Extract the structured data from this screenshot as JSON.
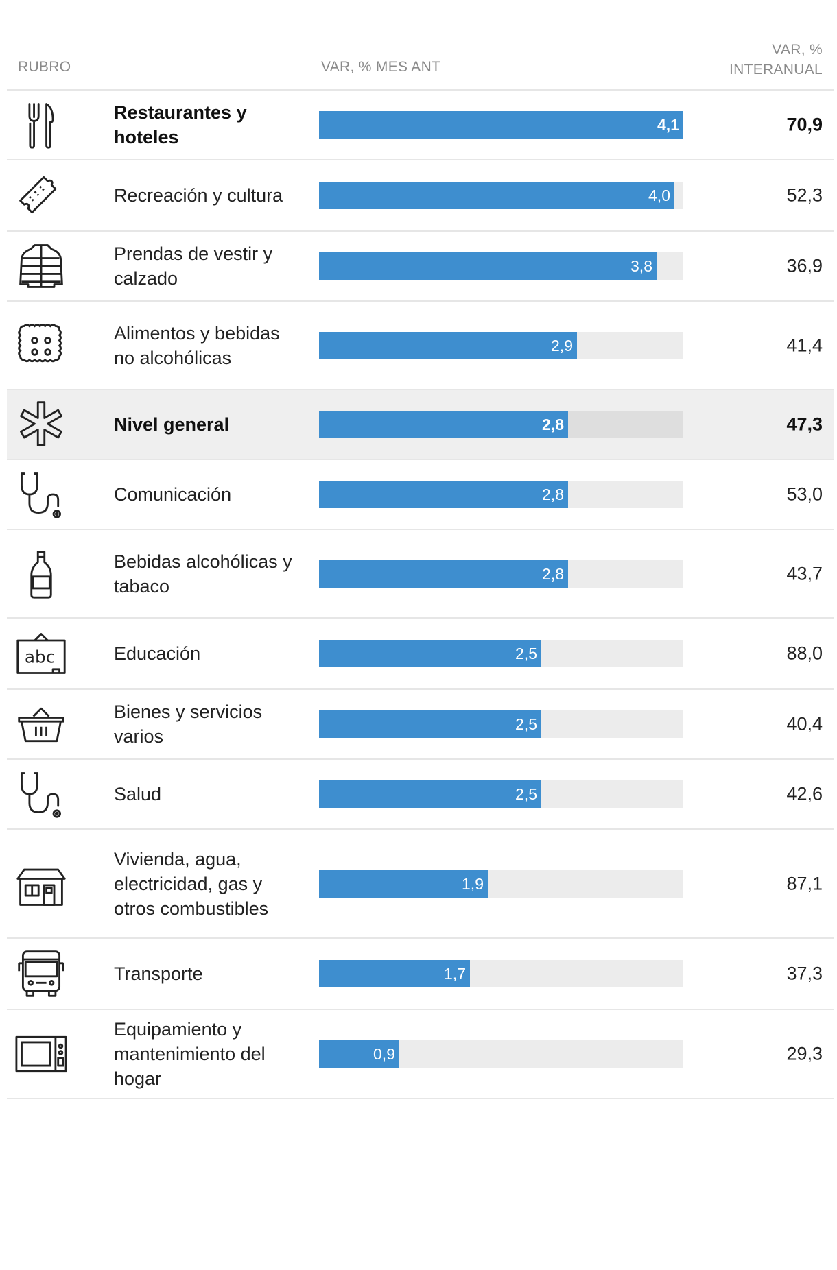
{
  "header": {
    "col_rubro": "RUBRO",
    "col_mes": "VAR, % MES ANT",
    "col_interanual": "VAR, %\nINTERANUAL"
  },
  "colors": {
    "bar": "#3e8ecf",
    "track": "#ececec",
    "highlight": "#efefef"
  },
  "chart_data": {
    "type": "bar",
    "orientation": "horizontal",
    "xlim": [
      0,
      4.1
    ],
    "categories": [
      "Restaurantes y hoteles",
      "Recreación y cultura",
      "Prendas de vestir y calzado",
      "Alimentos y bebidas no alcohólicas",
      "Nivel general",
      "Comunicación",
      "Bebidas alcohólicas y tabaco",
      "Educación",
      "Bienes y servicios varios",
      "Salud",
      "Vivienda, agua, electricidad, gas y otros combustibles",
      "Transporte",
      "Equipamiento y mantenimiento del hogar"
    ],
    "series": [
      {
        "name": "VAR, % MES ANT",
        "values": [
          4.1,
          4.0,
          3.8,
          2.9,
          2.8,
          2.8,
          2.8,
          2.5,
          2.5,
          2.5,
          1.9,
          1.7,
          0.9
        ]
      },
      {
        "name": "VAR, % INTERANUAL",
        "values": [
          70.9,
          52.3,
          36.9,
          41.4,
          47.3,
          53.0,
          43.7,
          88.0,
          40.4,
          42.6,
          87.1,
          37.3,
          29.3
        ]
      }
    ],
    "rows": [
      {
        "label": "Restaurantes y hoteles",
        "icon": "fork-knife-icon",
        "mes": 4.1,
        "mes_label": "4,1",
        "inter_label": "70,9",
        "bold": true
      },
      {
        "label": "Recreación y cultura",
        "icon": "ticket-icon",
        "mes": 4.0,
        "mes_label": "4,0",
        "inter_label": "52,3"
      },
      {
        "label": "Prendas de vestir y calzado",
        "icon": "jacket-icon",
        "mes": 3.8,
        "mes_label": "3,8",
        "inter_label": "36,9"
      },
      {
        "label": "Alimentos y bebidas no alcohólicas",
        "icon": "cracker-icon",
        "mes": 2.9,
        "mes_label": "2,9",
        "inter_label": "41,4"
      },
      {
        "label": "Nivel general",
        "icon": "asterisk-icon",
        "mes": 2.8,
        "mes_label": "2,8",
        "inter_label": "47,3",
        "bold": true,
        "highlight": true
      },
      {
        "label": "Comunicación",
        "icon": "stethoscope-icon",
        "mes": 2.8,
        "mes_label": "2,8",
        "inter_label": "53,0"
      },
      {
        "label": "Bebidas alcohólicas y tabaco",
        "icon": "bottle-icon",
        "mes": 2.8,
        "mes_label": "2,8",
        "inter_label": "43,7"
      },
      {
        "label": "Educación",
        "icon": "blackboard-icon",
        "icon_text": "abc",
        "mes": 2.5,
        "mes_label": "2,5",
        "inter_label": "88,0"
      },
      {
        "label": "Bienes y servicios varios",
        "icon": "basket-icon",
        "mes": 2.5,
        "mes_label": "2,5",
        "inter_label": "40,4"
      },
      {
        "label": "Salud",
        "icon": "stethoscope-icon",
        "mes": 2.5,
        "mes_label": "2,5",
        "inter_label": "42,6"
      },
      {
        "label": "Vivienda, agua, electricidad, gas y otros combustibles",
        "icon": "house-icon",
        "mes": 1.9,
        "mes_label": "1,9",
        "inter_label": "87,1"
      },
      {
        "label": "Transporte",
        "icon": "bus-icon",
        "mes": 1.7,
        "mes_label": "1,7",
        "inter_label": "37,3"
      },
      {
        "label": "Equipamiento y mantenimiento del hogar",
        "icon": "microwave-icon",
        "mes": 0.9,
        "mes_label": "0,9",
        "inter_label": "29,3"
      }
    ]
  }
}
